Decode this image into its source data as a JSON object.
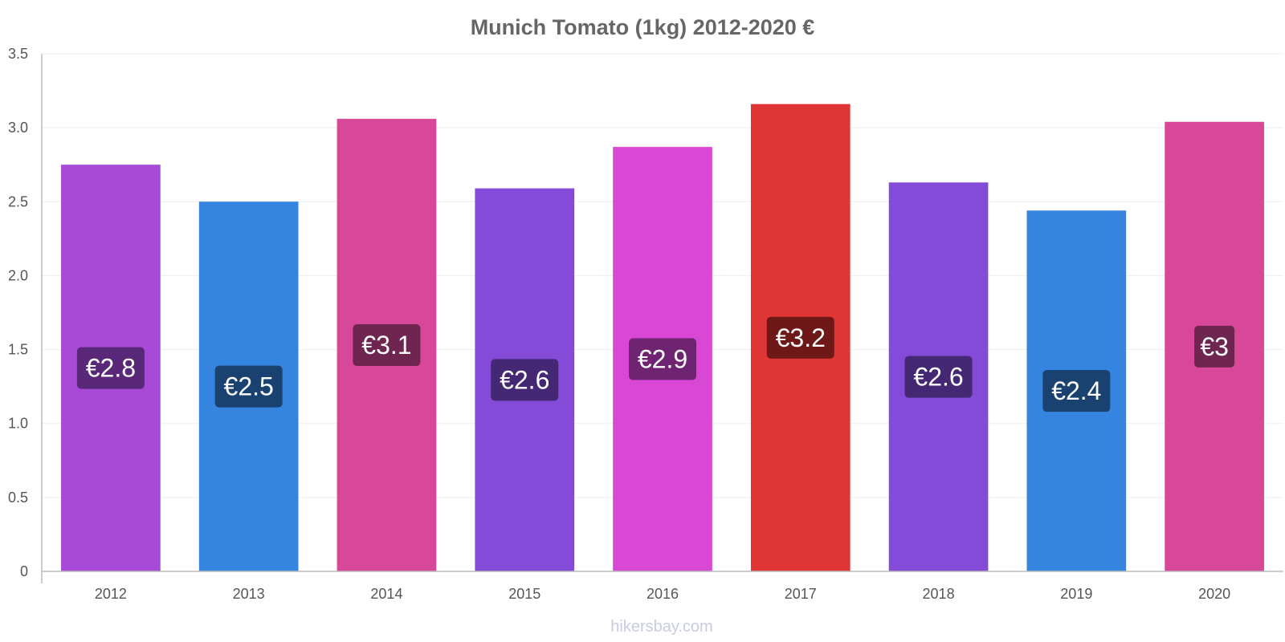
{
  "chart_data": {
    "type": "bar",
    "title": "Munich Tomato (1kg) 2012-2020 €",
    "xlabel": "",
    "ylabel": "",
    "ylim": [
      0,
      3.5
    ],
    "yticks": [
      "0",
      "0.5",
      "1.0",
      "1.5",
      "2.0",
      "2.5",
      "3.0",
      "3.5"
    ],
    "ytick_values": [
      0,
      0.5,
      1.0,
      1.5,
      2.0,
      2.5,
      3.0,
      3.5
    ],
    "grid": true,
    "categories": [
      "2012",
      "2013",
      "2014",
      "2015",
      "2016",
      "2017",
      "2018",
      "2019",
      "2020"
    ],
    "values": [
      2.75,
      2.5,
      3.06,
      2.59,
      2.87,
      3.16,
      2.63,
      2.44,
      3.04
    ],
    "data_labels": [
      "€2.8",
      "€2.5",
      "€3.1",
      "€2.6",
      "€2.9",
      "€3.2",
      "€2.6",
      "€2.4",
      "€3"
    ],
    "bar_colors": [
      "#a84ad8",
      "#3584e0",
      "#d84898",
      "#844bd8",
      "#d848d4",
      "#e03535",
      "#844bd8",
      "#3584e0",
      "#d84898"
    ],
    "label_colors": [
      "#5a2878",
      "#1a4270",
      "#6e2550",
      "#452874",
      "#6e2470",
      "#6e1818",
      "#452874",
      "#1a4270",
      "#6e2550"
    ]
  },
  "watermark": "hikersbay.com"
}
